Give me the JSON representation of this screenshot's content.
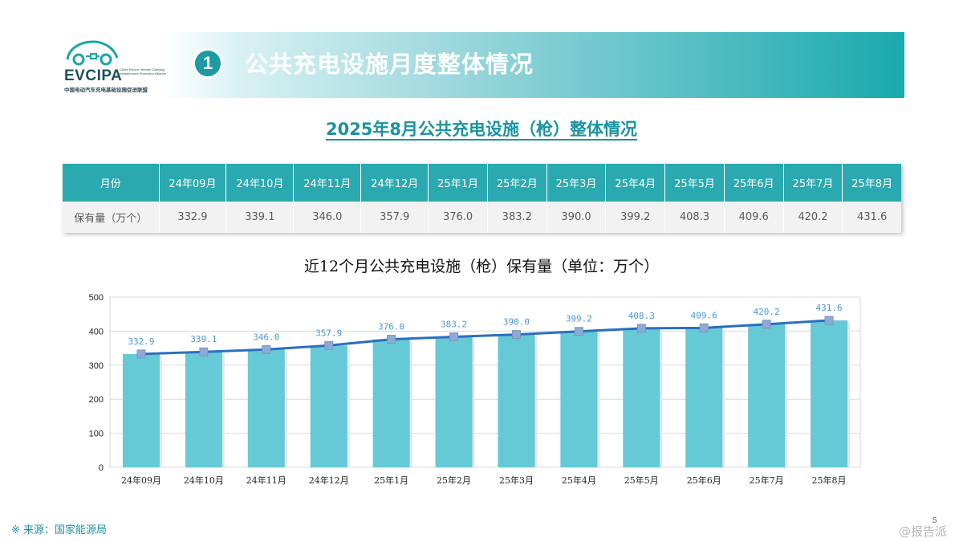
{
  "brand": {
    "logo_text": "EVCIPA",
    "logo_en": "China Electric Vehicle Charging Infrastructure Promotion Alliance",
    "logo_cn": "中国电动汽车充电基础设施促进联盟"
  },
  "header": {
    "section_number": "1",
    "title": "公共充电设施月度整体情况"
  },
  "subtitle": "2025年8月公共充电设施（枪）整体情况",
  "table": {
    "row_header": "月份",
    "row_label": "保有量（万个）",
    "months": [
      "24年09月",
      "24年10月",
      "24年11月",
      "24年12月",
      "25年1月",
      "25年2月",
      "25年3月",
      "25年4月",
      "25年5月",
      "25年6月",
      "25年7月",
      "25年8月"
    ],
    "values": [
      "332.9",
      "339.1",
      "346.0",
      "357.9",
      "376.0",
      "383.2",
      "390.0",
      "399.2",
      "408.3",
      "409.6",
      "420.2",
      "431.6"
    ]
  },
  "chart_title": "近12个月公共充电设施（枪）保有量（单位：万个）",
  "chart_data": {
    "type": "bar",
    "categories": [
      "24年09月",
      "24年10月",
      "24年11月",
      "24年12月",
      "25年1月",
      "25年2月",
      "25年3月",
      "25年4月",
      "25年5月",
      "25年6月",
      "25年7月",
      "25年8月"
    ],
    "series": [
      {
        "type": "bar",
        "values": [
          332.9,
          339.1,
          346.0,
          357.9,
          376.0,
          383.2,
          390.0,
          399.2,
          408.3,
          409.6,
          420.2,
          431.6
        ]
      },
      {
        "type": "line",
        "values": [
          332.9,
          339.1,
          346.0,
          357.9,
          376.0,
          383.2,
          390.0,
          399.2,
          408.3,
          409.6,
          420.2,
          431.6
        ]
      }
    ],
    "data_labels": [
      "332.9",
      "339.1",
      "346.0",
      "357.9",
      "376.0",
      "383.2",
      "390.0",
      "399.2",
      "408.3",
      "409.6",
      "420.2",
      "431.6"
    ],
    "ylim": [
      0,
      500
    ],
    "yticks": [
      0,
      100,
      200,
      300,
      400,
      500
    ],
    "grid": true,
    "colors": {
      "bar": "#66c9d6",
      "line": "#2a6fbf",
      "marker": "#8fa9d6",
      "label": "#4a97d4",
      "grid": "#d9d9d9"
    }
  },
  "footer": {
    "source": "※ 来源：国家能源局",
    "page_number": "5",
    "corner_mark": "@报告派"
  }
}
